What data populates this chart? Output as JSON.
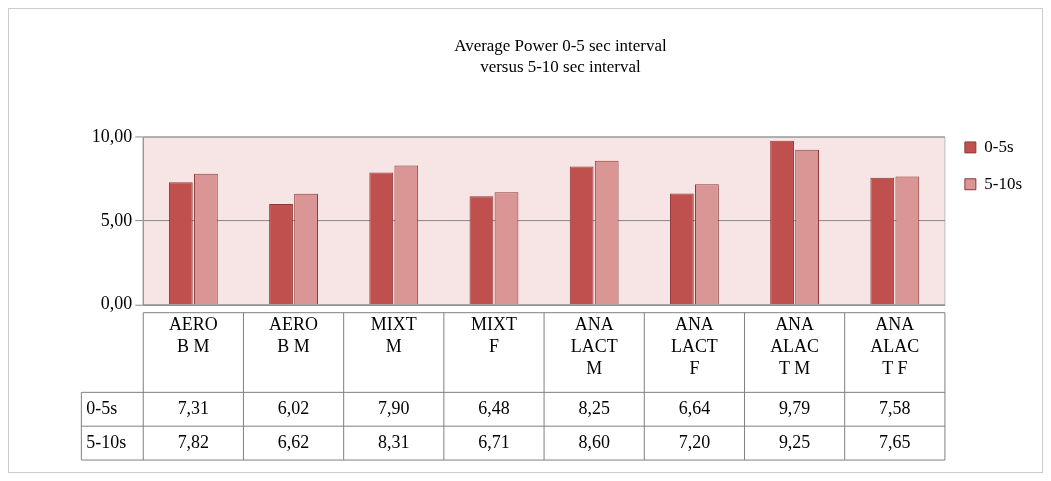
{
  "chart_data": {
    "type": "bar",
    "title": "Average Power 0-5 sec interval\nversus 5-10 sec interval",
    "categories": [
      "AEROB M",
      "AEROB M",
      "MIXT M",
      "MIXT F",
      "ANA LACT M",
      "ANA LACT F",
      "ANA ALACT M",
      "ANA ALACT F"
    ],
    "series": [
      {
        "name": "0-5s",
        "color": "#c0504d",
        "values": [
          7.31,
          6.02,
          7.9,
          6.48,
          8.25,
          6.64,
          9.79,
          7.58
        ]
      },
      {
        "name": "5-10s",
        "color": "#d99694",
        "values": [
          7.82,
          6.62,
          8.31,
          6.71,
          8.6,
          7.2,
          9.25,
          7.65
        ]
      }
    ],
    "value_labels": [
      [
        "7,31",
        "6,02",
        "7,90",
        "6,48",
        "8,25",
        "6,64",
        "9,79",
        "7,58"
      ],
      [
        "7,82",
        "6,62",
        "8,31",
        "6,71",
        "8,60",
        "7,20",
        "9,25",
        "7,65"
      ]
    ],
    "ylim": [
      0,
      10
    ],
    "yticks": [
      {
        "value": 0,
        "label": "0,00"
      },
      {
        "value": 5,
        "label": "5,00"
      },
      {
        "value": 10,
        "label": "10,00"
      }
    ],
    "grid": "y",
    "legend": "right"
  }
}
